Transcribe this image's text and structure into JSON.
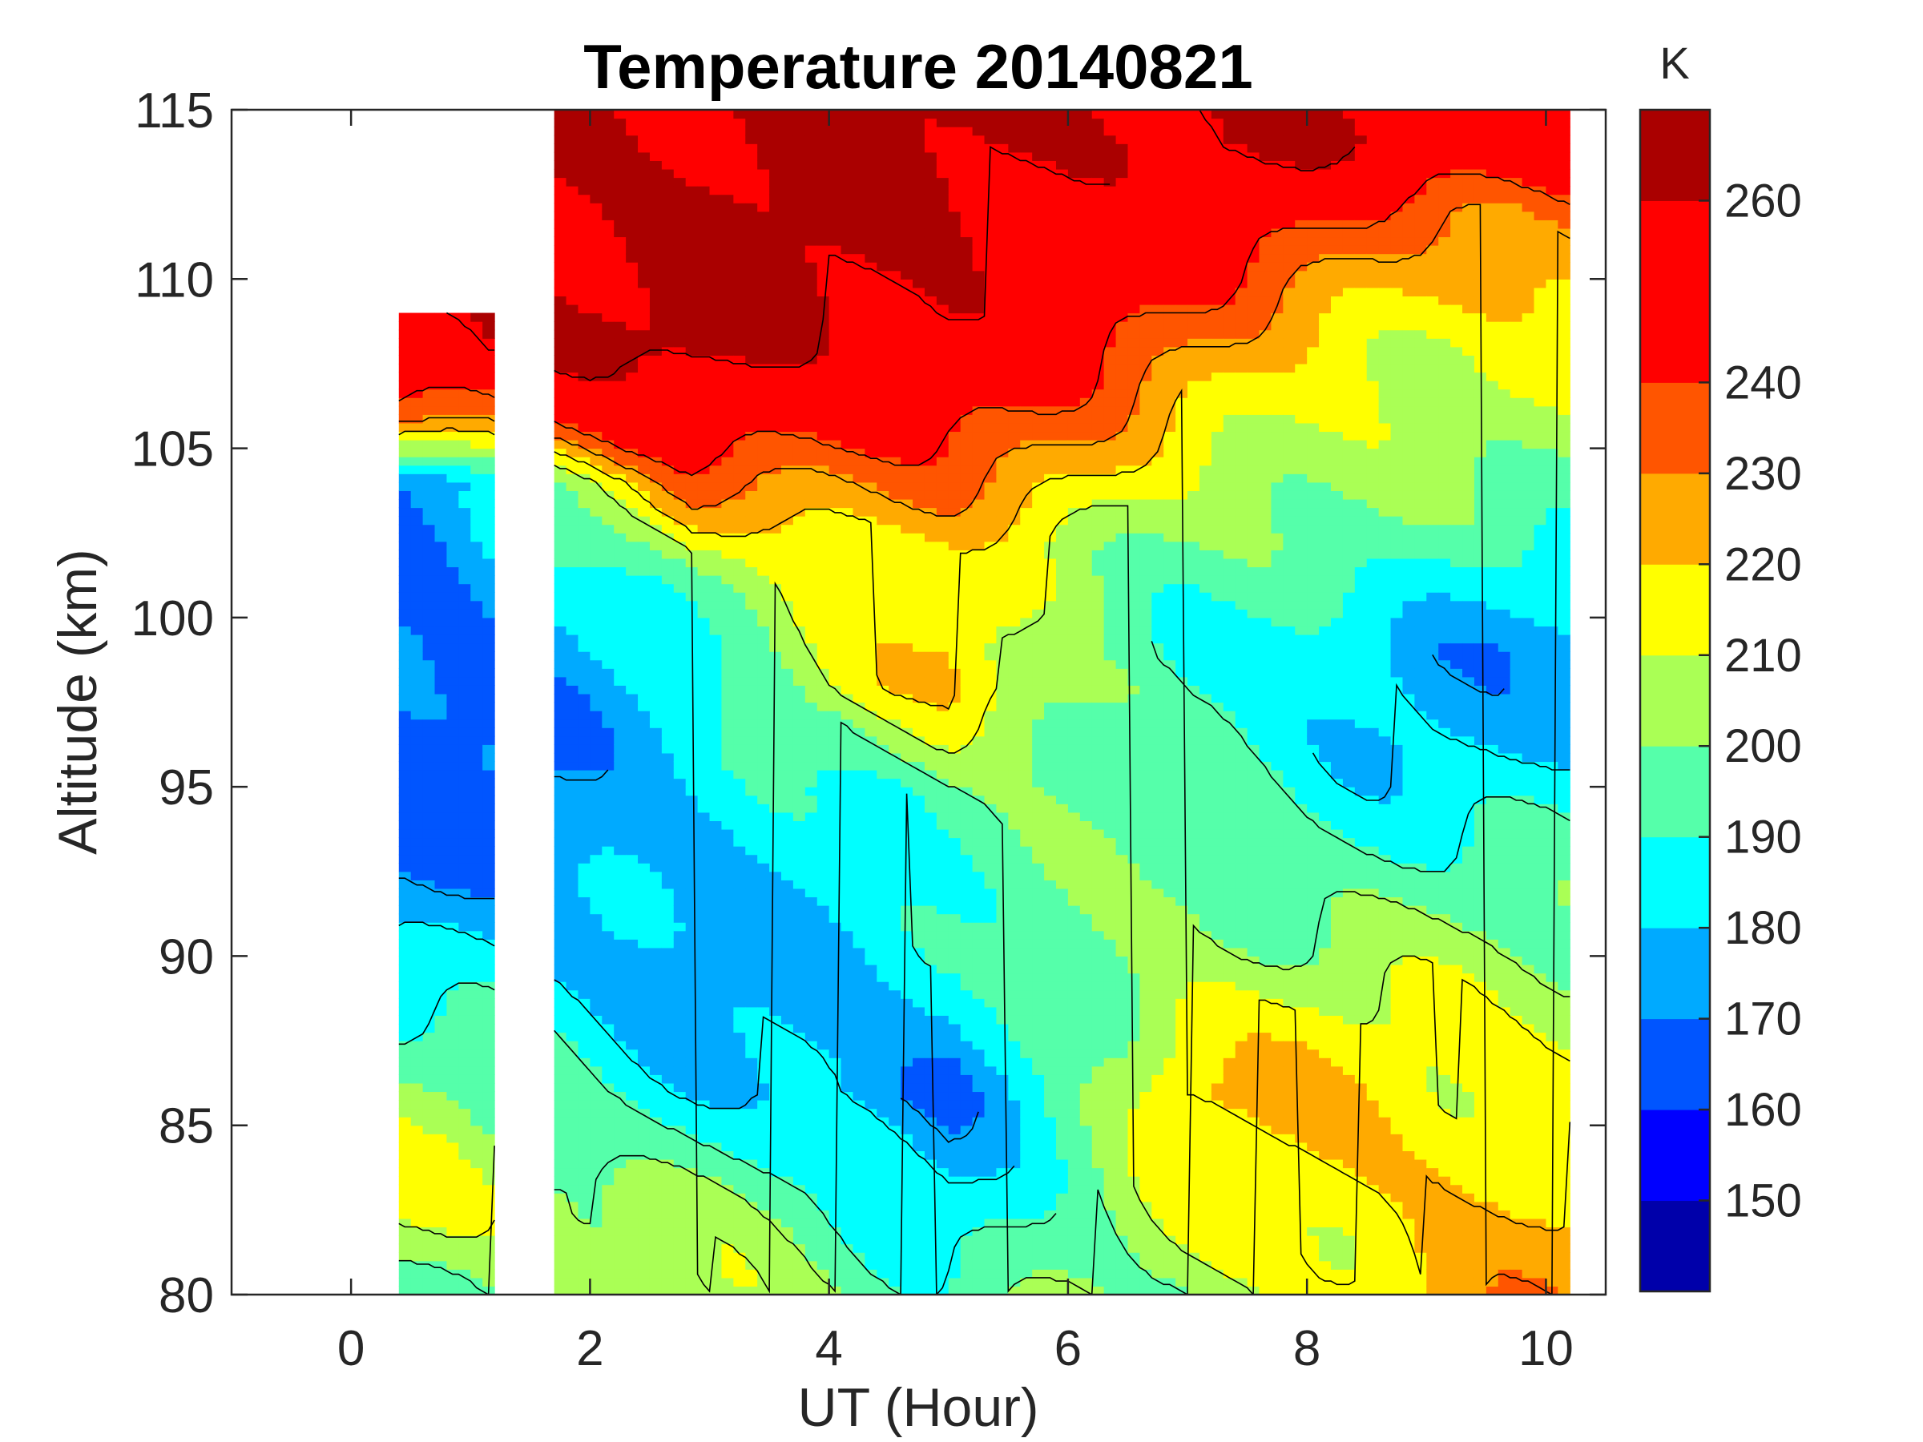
{
  "chart_data": {
    "type": "heatmap",
    "plot_style": "filled-contour",
    "title": "Temperature 20140821",
    "xlabel": "UT (Hour)",
    "ylabel": "Altitude (km)",
    "xlim": [
      -1,
      10.5
    ],
    "ylim": [
      80,
      115
    ],
    "xticks": [
      0,
      2,
      4,
      6,
      8,
      10
    ],
    "yticks": [
      80,
      85,
      90,
      95,
      100,
      105,
      110,
      115
    ],
    "colorbar": {
      "unit": "K",
      "range": [
        140,
        270
      ],
      "ticks": [
        150,
        160,
        170,
        180,
        190,
        200,
        210,
        220,
        230,
        240,
        260
      ],
      "levels": [
        {
          "from": 140,
          "to": 150,
          "color": "#0000aa"
        },
        {
          "from": 150,
          "to": 160,
          "color": "#0000ff"
        },
        {
          "from": 160,
          "to": 170,
          "color": "#0055ff"
        },
        {
          "from": 170,
          "to": 180,
          "color": "#00aaff"
        },
        {
          "from": 180,
          "to": 190,
          "color": "#00ffff"
        },
        {
          "from": 190,
          "to": 200,
          "color": "#55ffaa"
        },
        {
          "from": 200,
          "to": 210,
          "color": "#aaff55"
        },
        {
          "from": 210,
          "to": 220,
          "color": "#ffff00"
        },
        {
          "from": 220,
          "to": 230,
          "color": "#ffaa00"
        },
        {
          "from": 230,
          "to": 240,
          "color": "#ff5500"
        },
        {
          "from": 240,
          "to": 260,
          "color": "#ff0000"
        },
        {
          "from": 260,
          "to": 270,
          "color": "#aa0000"
        }
      ]
    },
    "data_coverage": [
      {
        "x_start": 0.4,
        "x_end": 1.2,
        "top_km": 109,
        "bottom_km": 80
      },
      {
        "x_start": 1.7,
        "x_end": 10.2,
        "top_km": 115,
        "bottom_km": 80
      }
    ],
    "features": [
      {
        "x_start": 0.4,
        "x_end": 1.2,
        "profile": [
          [
            80,
            200
          ],
          [
            83,
            215
          ],
          [
            86,
            200
          ],
          [
            89,
            185
          ],
          [
            91,
            178
          ],
          [
            93,
            168
          ],
          [
            98,
            165
          ],
          [
            104,
            170
          ],
          [
            106,
            235
          ],
          [
            108,
            262
          ]
        ]
      },
      {
        "x_start": 1.7,
        "x_end": 4.0,
        "profile": [
          [
            80,
            210
          ],
          [
            83,
            200
          ],
          [
            86,
            185
          ],
          [
            90,
            175
          ],
          [
            97,
            180
          ],
          [
            101,
            200
          ],
          [
            103,
            225
          ],
          [
            105,
            245
          ],
          [
            108,
            262
          ]
        ]
      },
      {
        "x_start": 4.0,
        "x_end": 6.0,
        "profile": [
          [
            80,
            195
          ],
          [
            83,
            182
          ],
          [
            86,
            165
          ],
          [
            90,
            185
          ],
          [
            95,
            200
          ],
          [
            98,
            225
          ],
          [
            102,
            215
          ],
          [
            106,
            245
          ],
          [
            109,
            262
          ]
        ]
      },
      {
        "x_start": 6.0,
        "x_end": 8.0,
        "profile": [
          [
            80,
            200
          ],
          [
            84,
            215
          ],
          [
            86,
            225
          ],
          [
            90,
            205
          ],
          [
            94,
            195
          ],
          [
            99,
            185
          ],
          [
            103,
            205
          ],
          [
            107,
            225
          ],
          [
            111,
            245
          ],
          [
            114,
            262
          ]
        ]
      },
      {
        "x_start": 8.0,
        "x_end": 10.2,
        "profile": [
          [
            80,
            225
          ],
          [
            84,
            220
          ],
          [
            88,
            210
          ],
          [
            92,
            195
          ],
          [
            96,
            180
          ],
          [
            99,
            175
          ],
          [
            103,
            195
          ],
          [
            108,
            210
          ],
          [
            112,
            235
          ],
          [
            114,
            255
          ]
        ]
      }
    ]
  }
}
